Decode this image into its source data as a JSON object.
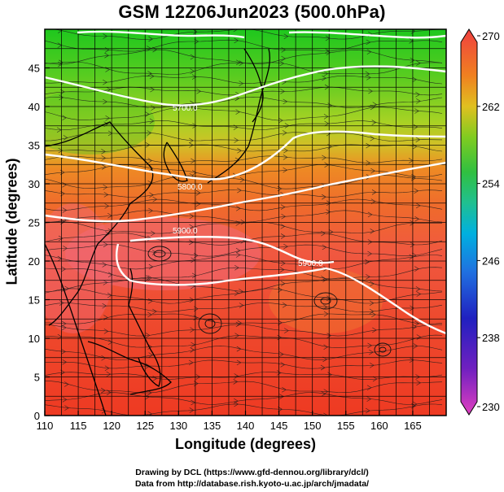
{
  "title": "GSM 12Z06Jun2023 (500.0hPa)",
  "x_axis": {
    "label": "Longitude (degrees)",
    "range": [
      110,
      170
    ],
    "ticks": [
      "110",
      "115",
      "120",
      "125",
      "130",
      "135",
      "140",
      "145",
      "150",
      "155",
      "160",
      "165"
    ]
  },
  "y_axis": {
    "label": "Latitude  (degrees)",
    "range": [
      0,
      50
    ],
    "ticks": [
      "0",
      "5",
      "10",
      "15",
      "20",
      "25",
      "30",
      "35",
      "40",
      "45"
    ]
  },
  "colorbar": {
    "labels": [
      "270",
      "262",
      "254",
      "246",
      "238",
      "230"
    ],
    "range": [
      230,
      270
    ],
    "colors": [
      "#e040c0",
      "#3020c0",
      "#00a0e0",
      "#20c080",
      "#40c040",
      "#a0d020",
      "#f0a020",
      "#f06020",
      "#f04040"
    ]
  },
  "contours": [
    {
      "label": "5700.0"
    },
    {
      "label": "5800.0"
    },
    {
      "label": "5900.0"
    },
    {
      "label": "5900.0"
    }
  ],
  "credits": {
    "line1": "Drawing by DCL (https://www.gfd-dennou.org/library/dcl/)",
    "line2": "Data from http://database.rish.kyoto-u.ac.jp/arch/jmadata/"
  }
}
